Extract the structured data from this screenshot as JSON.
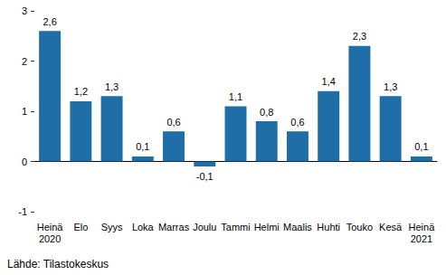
{
  "chart_data": {
    "type": "bar",
    "categories": [
      "Heinä\n2020",
      "Elo",
      "Syys",
      "Loka",
      "Marras",
      "Joulu",
      "Tammi",
      "Helmi",
      "Maalis",
      "Huhti",
      "Touko",
      "Kesä",
      "Heinä\n2021"
    ],
    "values": [
      2.6,
      1.2,
      1.3,
      0.1,
      0.6,
      -0.1,
      1.1,
      0.8,
      0.6,
      1.4,
      2.3,
      1.3,
      0.1
    ],
    "value_labels": [
      "2,6",
      "1,2",
      "1,3",
      "0,1",
      "0,6",
      "-0,1",
      "1,1",
      "0,8",
      "0,6",
      "1,4",
      "2,3",
      "1,3",
      "0,1"
    ],
    "data_labels": true,
    "color": "#1f6ea8",
    "ylim": [
      -1,
      3
    ],
    "yticks": [
      -1,
      0,
      1,
      2,
      3
    ],
    "grid": false,
    "source": "Lähde: Tilastokeskus"
  }
}
